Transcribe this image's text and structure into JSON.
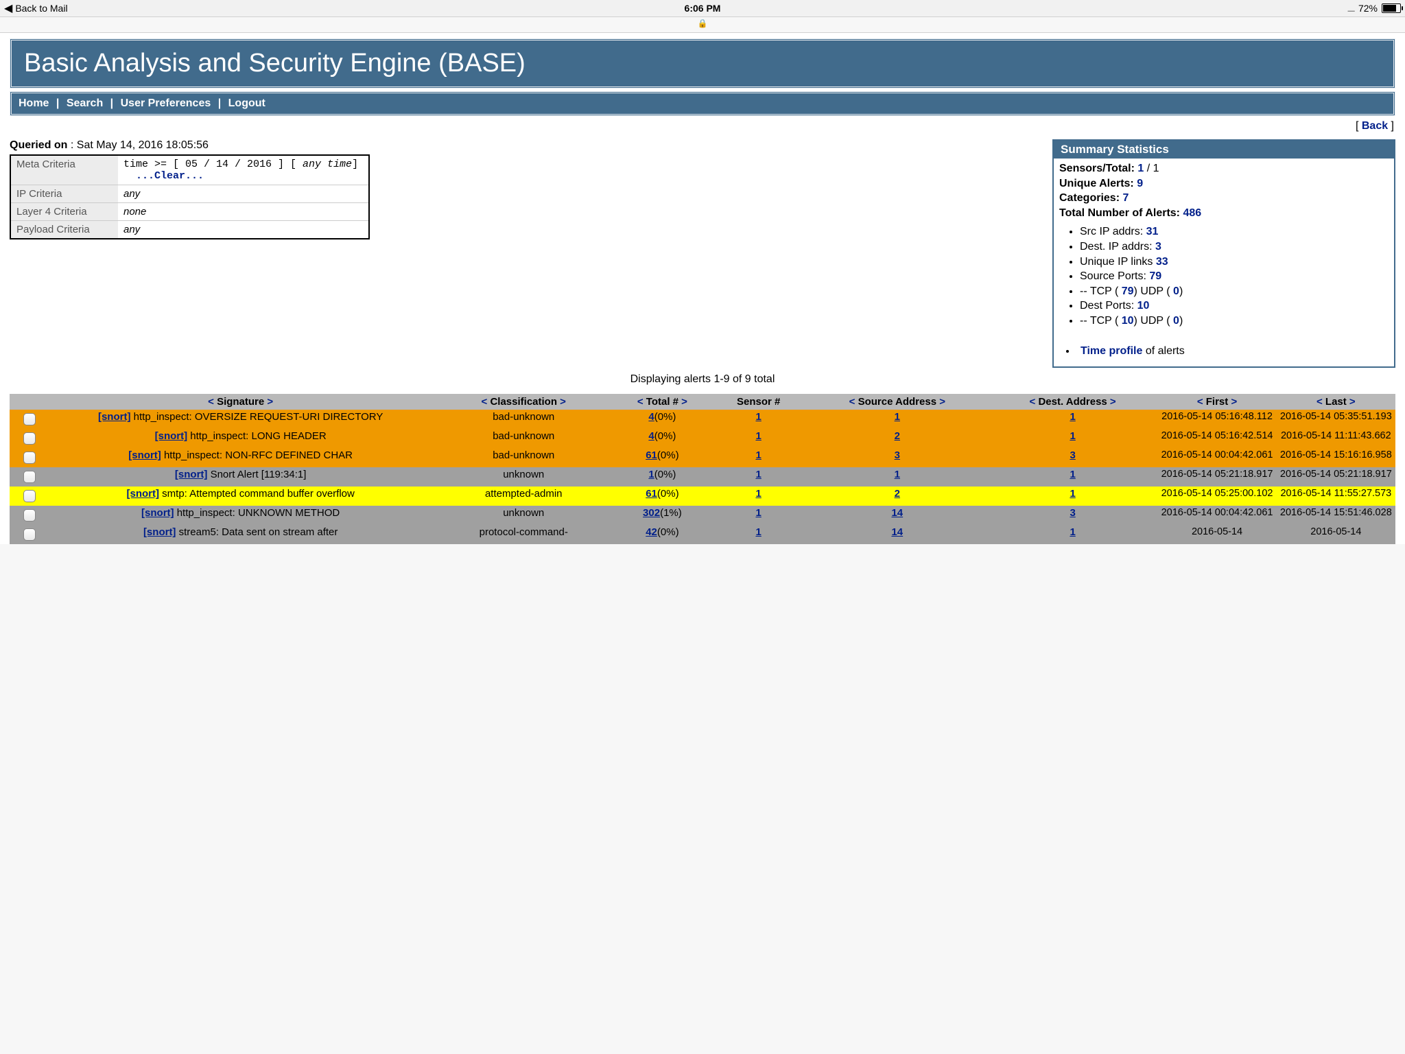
{
  "status_bar": {
    "back_label": "Back to Mail",
    "time": "6:06 PM",
    "battery_pct": "72%",
    "lock_icon": "🔒"
  },
  "banner_title": "Basic Analysis and Security Engine (BASE)",
  "nav": {
    "home": "Home",
    "search": "Search",
    "prefs": "User Preferences",
    "logout": "Logout"
  },
  "back_link": "Back",
  "queried": {
    "label": "Queried on",
    "value": "Sat May 14, 2016 18:05:56"
  },
  "criteria": {
    "meta_label": "Meta Criteria",
    "meta_value_prefix": "time >= [ 05 / 14 / 2016 ] [ ",
    "meta_value_italic": "any time",
    "meta_value_suffix": "]",
    "clear": "...Clear...",
    "ip_label": "IP Criteria",
    "ip_value": "any",
    "l4_label": "Layer 4 Criteria",
    "l4_value": "none",
    "payload_label": "Payload Criteria",
    "payload_value": "any"
  },
  "summary": {
    "header": "Summary Statistics",
    "sensors_label": "Sensors/Total:",
    "sensors_link": "1",
    "sensors_total": " / 1",
    "unique_label": "Unique Alerts:",
    "unique_val": "9",
    "categories_label": "Categories:",
    "categories_val": "7",
    "total_label": "Total Number of Alerts:",
    "total_val": "486",
    "src_ip_label": "Src IP addrs: ",
    "src_ip_val": "31",
    "dst_ip_label": "Dest. IP addrs: ",
    "dst_ip_val": "3",
    "unique_links_label": "Unique IP links ",
    "unique_links_val": "33",
    "src_ports_label": "Source Ports: ",
    "src_ports_val": "79",
    "src_ports_tcp_l": " -- TCP ( ",
    "src_ports_tcp_v": "79",
    "src_ports_tcp_r": ")  UDP ( ",
    "src_ports_udp_v": "0",
    "src_ports_udp_r": ")",
    "dst_ports_label": "Dest Ports: ",
    "dst_ports_val": "10",
    "dst_ports_tcp_l": " -- TCP ( ",
    "dst_ports_tcp_v": "10",
    "dst_ports_tcp_r": ")  UDP ( ",
    "dst_ports_udp_v": "0",
    "dst_ports_udp_r": ")",
    "time_profile_link": "Time profile",
    "time_profile_suffix": " of alerts"
  },
  "display_count": "Displaying alerts 1-9 of 9 total",
  "columns": {
    "sig": "Signature",
    "cls": "Classification",
    "tot": "Total #",
    "sens": "Sensor #",
    "src": "Source Address",
    "dst": "Dest. Address",
    "first": "First",
    "last": "Last"
  },
  "rows": [
    {
      "color": "orange",
      "sig": "http_inspect: OVERSIZE REQUEST-URI DIRECTORY",
      "cls": "bad-unknown",
      "tot": "4",
      "pct": "(0%)",
      "sens": "1",
      "src": "1",
      "dst": "1",
      "f1": "2016-05-14",
      "f2": "05:16:48.112",
      "l1": "2016-05-14",
      "l2": "05:35:51.193"
    },
    {
      "color": "orange",
      "sig": "http_inspect: LONG HEADER",
      "cls": "bad-unknown",
      "tot": "4",
      "pct": "(0%)",
      "sens": "1",
      "src": "2",
      "dst": "1",
      "f1": "2016-05-14",
      "f2": "05:16:42.514",
      "l1": "2016-05-14",
      "l2": "11:11:43.662"
    },
    {
      "color": "orange",
      "sig": "http_inspect: NON-RFC DEFINED CHAR",
      "cls": "bad-unknown",
      "tot": "61",
      "pct": "(0%)",
      "sens": "1",
      "src": "3",
      "dst": "3",
      "f1": "2016-05-14",
      "f2": "00:04:42.061",
      "l1": "2016-05-14",
      "l2": "15:16:16.958"
    },
    {
      "color": "gray",
      "sig": "Snort Alert [119:34:1]",
      "cls": "unknown",
      "tot": "1",
      "pct": "(0%)",
      "sens": "1",
      "src": "1",
      "dst": "1",
      "f1": "2016-05-14",
      "f2": "05:21:18.917",
      "l1": "2016-05-14",
      "l2": "05:21:18.917"
    },
    {
      "color": "yellow",
      "sig": "smtp: Attempted command buffer overflow",
      "cls": "attempted-admin",
      "tot": "61",
      "pct": "(0%)",
      "sens": "1",
      "src": "2",
      "dst": "1",
      "f1": "2016-05-14",
      "f2": "05:25:00.102",
      "l1": "2016-05-14",
      "l2": "11:55:27.573"
    },
    {
      "color": "gray",
      "sig": "http_inspect: UNKNOWN METHOD",
      "cls": "unknown",
      "tot": "302",
      "pct": "(1%)",
      "sens": "1",
      "src": "14",
      "dst": "3",
      "f1": "2016-05-14",
      "f2": "00:04:42.061",
      "l1": "2016-05-14",
      "l2": "15:51:46.028"
    },
    {
      "color": "gray",
      "sig": "stream5: Data sent on stream after",
      "cls": "protocol-command-",
      "tot": "42",
      "pct": "(0%)",
      "sens": "1",
      "src": "14",
      "dst": "1",
      "f1": "2016-05-14",
      "f2": "",
      "l1": "2016-05-14",
      "l2": ""
    }
  ],
  "snort_tag": "[snort]",
  "colors": {
    "orange": "#ef9900",
    "gray": "#a0a0a0",
    "yellow": "#ffff00",
    "header_bg": "#416b8c",
    "link": "#001f8a",
    "thead": "#b9b9b9"
  }
}
